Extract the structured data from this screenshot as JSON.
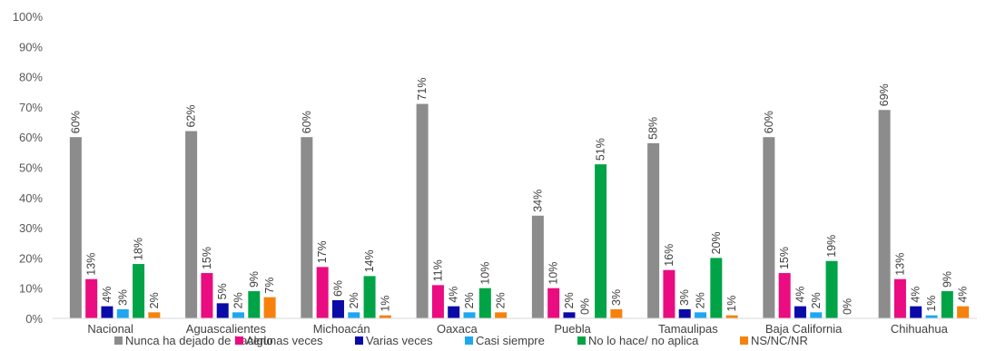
{
  "chart_data": {
    "type": "bar",
    "title": "",
    "xlabel": "",
    "ylabel": "",
    "ylim": [
      0,
      100
    ],
    "y_ticks": [
      "0%",
      "10%",
      "20%",
      "30%",
      "40%",
      "50%",
      "60%",
      "70%",
      "80%",
      "90%",
      "100%"
    ],
    "grid": false,
    "legend_position": "bottom",
    "categories": [
      "Nacional",
      "Aguascalientes",
      "Michoacán",
      "Oaxaca",
      "Puebla",
      "Tamaulipas",
      "Baja California",
      "Chihuahua"
    ],
    "series": [
      {
        "name": "Nunca ha dejado de hacerlo",
        "color": "#8c8c8c",
        "values": [
          60,
          62,
          60,
          71,
          34,
          58,
          60,
          69
        ],
        "labels": [
          "60%",
          "62%",
          "60%",
          "71%",
          "34%",
          "58%",
          "60%",
          "69%"
        ]
      },
      {
        "name": "Algunas veces",
        "color": "#ea0c80",
        "values": [
          13,
          15,
          17,
          11,
          10,
          16,
          15,
          13
        ],
        "labels": [
          "13%",
          "15%",
          "17%",
          "11%",
          "10%",
          "16%",
          "15%",
          "13%"
        ]
      },
      {
        "name": "Varias veces",
        "color": "#0a0aa8",
        "values": [
          4,
          5,
          6,
          4,
          2,
          3,
          4,
          4
        ],
        "labels": [
          "4%",
          "5%",
          "6%",
          "4%",
          "2%",
          "3%",
          "4%",
          "4%"
        ]
      },
      {
        "name": "Casi siempre",
        "color": "#1ea7f0",
        "values": [
          3,
          2,
          2,
          2,
          0,
          2,
          2,
          1
        ],
        "labels": [
          "3%",
          "2%",
          "2%",
          "2%",
          "0%",
          "2%",
          "2%",
          "1%"
        ]
      },
      {
        "name": "No lo hace/ no aplica",
        "color": "#00a446",
        "values": [
          18,
          9,
          14,
          10,
          51,
          20,
          19,
          9
        ],
        "labels": [
          "18%",
          "9%",
          "14%",
          "10%",
          "51%",
          "20%",
          "19%",
          "9%"
        ]
      },
      {
        "name": "NS/NC/NR",
        "color": "#f6820d",
        "values": [
          2,
          7,
          1,
          2,
          3,
          1,
          0,
          4
        ],
        "labels": [
          "2%",
          "7%",
          "1%",
          "2%",
          "3%",
          "1%",
          "0%",
          "4%"
        ]
      }
    ]
  }
}
